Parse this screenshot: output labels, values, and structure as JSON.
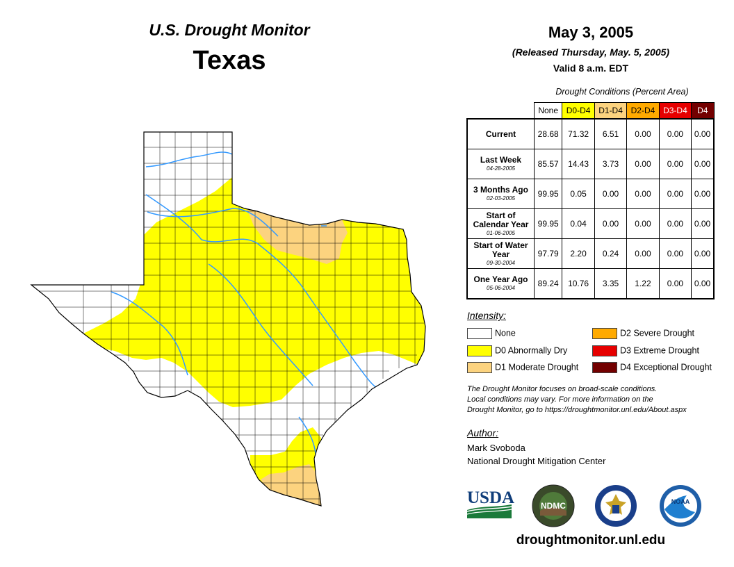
{
  "header": {
    "title": "U.S. Drought Monitor",
    "state": "Texas",
    "date": "May 3, 2005",
    "released": "(Released Thursday, May. 5, 2005)",
    "valid": "Valid 8 a.m. EDT"
  },
  "table": {
    "caption": "Drought Conditions (Percent Area)",
    "columns": [
      "None",
      "D0-D4",
      "D1-D4",
      "D2-D4",
      "D3-D4",
      "D4"
    ],
    "column_colors": [
      "#ffffff",
      "#ffff00",
      "#fcd37f",
      "#ffaa00",
      "#e60000",
      "#730000"
    ],
    "column_text_colors": [
      "#000000",
      "#000000",
      "#000000",
      "#000000",
      "#ffffff",
      "#ffffff"
    ],
    "rows": [
      {
        "label": "Current",
        "date": "",
        "values": [
          "28.68",
          "71.32",
          "6.51",
          "0.00",
          "0.00",
          "0.00"
        ]
      },
      {
        "label": "Last Week",
        "date": "04-28-2005",
        "values": [
          "85.57",
          "14.43",
          "3.73",
          "0.00",
          "0.00",
          "0.00"
        ]
      },
      {
        "label": "3 Months Ago",
        "date": "02-03-2005",
        "values": [
          "99.95",
          "0.05",
          "0.00",
          "0.00",
          "0.00",
          "0.00"
        ]
      },
      {
        "label": "Start of Calendar Year",
        "date": "01-06-2005",
        "values": [
          "99.95",
          "0.04",
          "0.00",
          "0.00",
          "0.00",
          "0.00"
        ]
      },
      {
        "label": "Start of Water Year",
        "date": "09-30-2004",
        "values": [
          "97.79",
          "2.20",
          "0.24",
          "0.00",
          "0.00",
          "0.00"
        ]
      },
      {
        "label": "One Year Ago",
        "date": "05-06-2004",
        "values": [
          "89.24",
          "10.76",
          "3.35",
          "1.22",
          "0.00",
          "0.00"
        ]
      }
    ]
  },
  "legend": {
    "title": "Intensity:",
    "items": [
      {
        "label": "None",
        "color": "#ffffff"
      },
      {
        "label": "D0 Abnormally Dry",
        "color": "#ffff00"
      },
      {
        "label": "D1 Moderate Drought",
        "color": "#fcd37f"
      },
      {
        "label": "D2 Severe Drought",
        "color": "#ffaa00"
      },
      {
        "label": "D3 Extreme Drought",
        "color": "#e60000"
      },
      {
        "label": "D4 Exceptional Drought",
        "color": "#730000"
      }
    ]
  },
  "note": {
    "line1": "The Drought Monitor focuses on broad-scale conditions.",
    "line2": "Local conditions may vary. For more information on the",
    "line3": "Drought Monitor, go to https://droughtmonitor.unl.edu/About.aspx"
  },
  "author": {
    "title": "Author:",
    "name": "Mark Svoboda",
    "org": "National Drought Mitigation Center"
  },
  "logos": {
    "usda": "USDA",
    "ndmc": "NDMC",
    "noaa": "NOAA"
  },
  "website": "droughtmonitor.unl.edu",
  "map_colors": {
    "none": "#ffffff",
    "d0": "#ffff00",
    "d1": "#fcd37f",
    "river": "#3399ff",
    "border": "#000000"
  }
}
